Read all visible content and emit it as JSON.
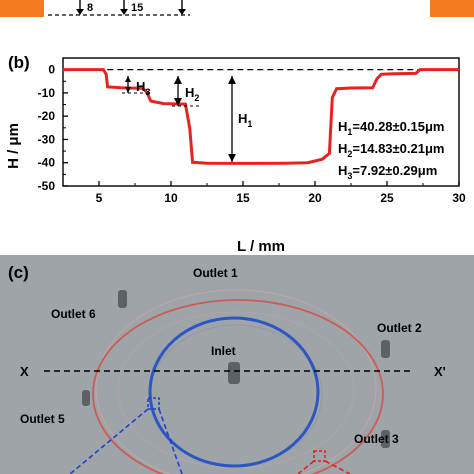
{
  "panel_b": {
    "label": "(b)",
    "ylabel": "H / μm",
    "xlabel": "L / mm",
    "x_ticks": [
      "5",
      "10",
      "15",
      "20",
      "25",
      "30"
    ],
    "y_ticks": [
      "0",
      "-10",
      "-20",
      "-30",
      "-40",
      "-50"
    ],
    "h_labels": {
      "h1": "H",
      "h1_sub": "1",
      "h2": "H",
      "h2_sub": "2",
      "h3": "H",
      "h3_sub": "3"
    },
    "measurements": [
      {
        "name": "H",
        "sub": "1",
        "text": "=40.28±0.15μm"
      },
      {
        "name": "H",
        "sub": "2",
        "text": "=14.83±0.21μm"
      },
      {
        "name": "H",
        "sub": "3",
        "text": "=7.92±0.29μm"
      }
    ],
    "top_strip_labels": [
      "8",
      "15"
    ]
  },
  "chart_data": {
    "type": "line",
    "xlabel": "L / mm",
    "ylabel": "H / μm",
    "xlim": [
      2.5,
      30
    ],
    "ylim": [
      -50,
      5
    ],
    "grid": false,
    "series": [
      {
        "color": "#e8231f",
        "points": [
          [
            2.5,
            0
          ],
          [
            5.3,
            0
          ],
          [
            5.5,
            -2
          ],
          [
            5.6,
            -7.4
          ],
          [
            6.5,
            -7.8
          ],
          [
            8.0,
            -8.0
          ],
          [
            8.3,
            -9.5
          ],
          [
            8.6,
            -13.5
          ],
          [
            9.5,
            -14.6
          ],
          [
            11.0,
            -14.8
          ],
          [
            11.3,
            -25
          ],
          [
            11.5,
            -39.8
          ],
          [
            12.5,
            -40.2
          ],
          [
            15,
            -40.3
          ],
          [
            18,
            -40.2
          ],
          [
            19.5,
            -40.0
          ],
          [
            20.5,
            -38.5
          ],
          [
            21.0,
            -36
          ],
          [
            21.2,
            -12
          ],
          [
            21.5,
            -8.2
          ],
          [
            22.5,
            -7.9
          ],
          [
            24.0,
            -7.8
          ],
          [
            24.3,
            -4
          ],
          [
            24.6,
            -2.0
          ],
          [
            25.5,
            -1.8
          ],
          [
            27.0,
            -1.6
          ],
          [
            27.3,
            0
          ],
          [
            30,
            0
          ]
        ]
      }
    ],
    "reference_line": 0,
    "annotations": [
      "H1=40.28±0.15μm",
      "H2=14.83±0.21μm",
      "H3=7.92±0.29μm"
    ]
  },
  "panel_c": {
    "label": "(c)",
    "outlets": [
      "Outlet 1",
      "Outlet 2",
      "Outlet 3",
      "Outlet 5",
      "Outlet 6"
    ],
    "inlet": "Inlet",
    "axis_left": "X",
    "axis_right": "X'",
    "colors": {
      "outer_ring": "#d9443a",
      "inner_ring": "#1f4fc4",
      "background": "#9fa4a8"
    }
  }
}
